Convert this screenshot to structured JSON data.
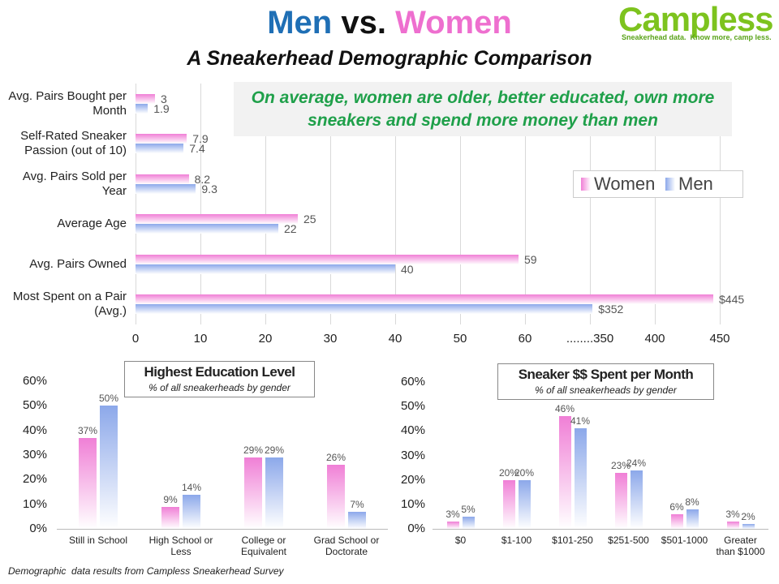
{
  "header": {
    "title": [
      "Men",
      "vs.",
      "Women"
    ],
    "subtitle": "A Sneakerhead Demographic Comparison"
  },
  "logo": {
    "name": "Campless",
    "tagline": "Sneakerhead data.  Know more, camp less."
  },
  "footer": "Demographic  data results from Campless Sneakerhead Survey",
  "chart_data": [
    {
      "type": "hbar",
      "annotation": "On average, women are older, better educated, own more sneakers and spend more money than men",
      "categories": [
        "Avg. Pairs Bought per Month",
        "Self-Rated Sneaker Passion (out of 10)",
        "Avg. Pairs Sold per Year",
        "Average Age",
        "Avg. Pairs Owned",
        "Most Spent on a Pair (Avg.)"
      ],
      "series": [
        {
          "name": "Women",
          "color": "#f07fd6",
          "values": [
            3,
            7.9,
            8.2,
            25,
            59,
            445
          ],
          "value_labels": [
            "3",
            "7.9",
            "8.2",
            "25",
            "59",
            "$445"
          ]
        },
        {
          "name": "Men",
          "color": "#8ca8ea",
          "values": [
            1.9,
            7.4,
            9.3,
            22,
            40,
            352
          ],
          "value_labels": [
            "1.9",
            "7.4",
            "9.3",
            "22",
            "40",
            "$352"
          ]
        }
      ],
      "xlim": [
        0,
        450
      ],
      "axis_break": [
        60,
        350
      ],
      "xticks": [
        0,
        10,
        20,
        30,
        40,
        50,
        60,
        {
          "value": 350,
          "label": "........350"
        },
        400,
        450
      ],
      "grid": true,
      "legend": "upper-right"
    },
    {
      "type": "bar",
      "title": "Highest Education Level",
      "subtitle": "% of all sneakerheads by gender",
      "categories": [
        "Still in School",
        "High School or Less",
        "College or Equivalent",
        "Grad School or Doctorate"
      ],
      "series": [
        {
          "color": "#f07fd6",
          "values": [
            37,
            9,
            29,
            26
          ],
          "value_labels": [
            "37%",
            "9%",
            "29%",
            "26%"
          ]
        },
        {
          "color": "#8ca8ea",
          "values": [
            50,
            14,
            29,
            7
          ],
          "value_labels": [
            "50%",
            "14%",
            "29%",
            "7%"
          ]
        }
      ],
      "ylim": [
        0,
        60
      ],
      "yticks": [
        {
          "value": 0,
          "label": "0%"
        },
        {
          "value": 10,
          "label": "10%"
        },
        {
          "value": 20,
          "label": "20%"
        },
        {
          "value": 30,
          "label": "30%"
        },
        {
          "value": 40,
          "label": "40%"
        },
        {
          "value": 50,
          "label": "50%"
        },
        {
          "value": 60,
          "label": "60%"
        }
      ]
    },
    {
      "type": "bar",
      "title": "Sneaker $$ Spent per Month",
      "subtitle": "% of all sneakerheads by gender",
      "categories": [
        "$0",
        "$1-100",
        "$101-250",
        "$251-500",
        "$501-1000",
        "Greater than $1000"
      ],
      "series": [
        {
          "color": "#f07fd6",
          "values": [
            3,
            20,
            46,
            23,
            6,
            3
          ],
          "value_labels": [
            "3%",
            "20%",
            "46%",
            "23%",
            "6%",
            "3%"
          ]
        },
        {
          "color": "#8ca8ea",
          "values": [
            5,
            20,
            41,
            24,
            8,
            2
          ],
          "value_labels": [
            "5%",
            "20%",
            "41%",
            "24%",
            "8%",
            "2%"
          ]
        }
      ],
      "ylim": [
        0,
        60
      ],
      "yticks": [
        {
          "value": 0,
          "label": "0%"
        },
        {
          "value": 10,
          "label": "10%"
        },
        {
          "value": 20,
          "label": "20%"
        },
        {
          "value": 30,
          "label": "30%"
        },
        {
          "value": 40,
          "label": "40%"
        },
        {
          "value": 50,
          "label": "50%"
        },
        {
          "value": 60,
          "label": "60%"
        }
      ]
    }
  ]
}
